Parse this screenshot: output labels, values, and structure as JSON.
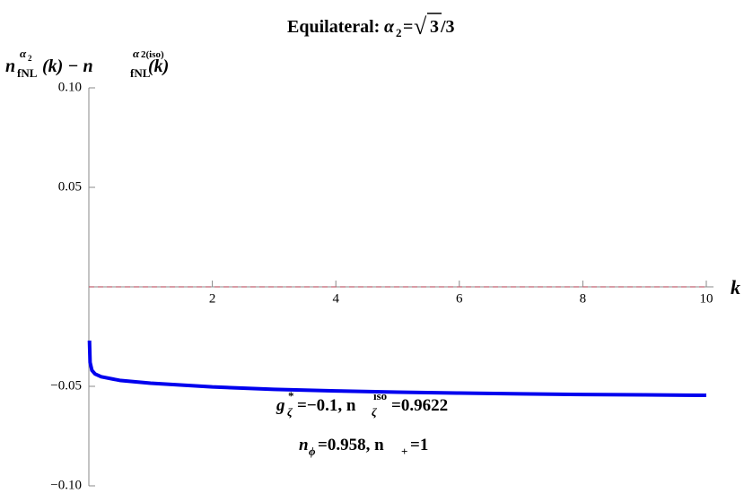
{
  "chart_data": {
    "type": "line",
    "title": [
      "Equilateral: ",
      "α",
      "2",
      "=",
      "√",
      "3",
      " /3"
    ],
    "y_label": [
      "n",
      "α",
      "2",
      "fNL",
      "(k) − n",
      "α",
      "2(iso)",
      "fNL",
      "(k)"
    ],
    "x_label": "k",
    "annotations": [
      [
        "g",
        "*",
        "ζ",
        "=−0.1, n",
        "iso",
        "ζ",
        "=0.9622"
      ],
      [
        "n",
        "ϕ",
        "=0.958, n",
        "+",
        "=1"
      ]
    ],
    "xlim": [
      0,
      10
    ],
    "ylim": [
      -0.1,
      0.1
    ],
    "xticks": [
      2,
      4,
      6,
      8,
      10
    ],
    "yticks": [
      {
        "value": -0.1,
        "label": "−0.10"
      },
      {
        "value": -0.05,
        "label": "−0.05"
      },
      0.05,
      {
        "value": 0.1,
        "label": "0.10"
      }
    ],
    "series": [
      {
        "color": "#0000ee",
        "x": [
          0.01,
          0.02,
          0.05,
          0.1,
          0.2,
          0.5,
          1,
          2,
          3,
          4,
          5,
          6,
          7,
          8,
          9,
          10
        ],
        "values": [
          -0.027,
          -0.038,
          -0.042,
          -0.0438,
          -0.0452,
          -0.047,
          -0.0484,
          -0.0503,
          -0.0515,
          -0.0523,
          -0.0529,
          -0.0534,
          -0.0538,
          -0.0541,
          -0.0543,
          -0.0545
        ]
      },
      {
        "color": "#c06070",
        "dashed": true,
        "x": [
          0,
          10
        ],
        "values": [
          0,
          0
        ]
      }
    ]
  }
}
